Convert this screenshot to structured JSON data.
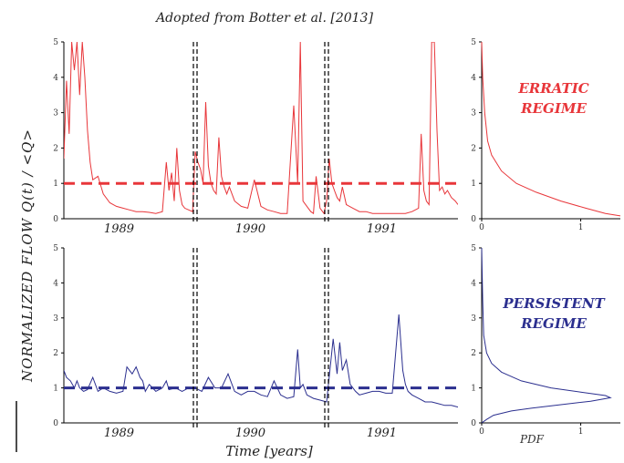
{
  "title": "Adopted from Botter et al. [2013]",
  "ylabel": "NORMALIZED  FLOW   Q(t) / <Q>",
  "xlabel": "Time [years]",
  "colors": {
    "erratic": "#e8363a",
    "persistent": "#2b2f8f",
    "axis": "#000000"
  },
  "chart_data": [
    {
      "type": "line",
      "name": "erratic-time-series",
      "ylim": [
        0,
        5
      ],
      "yticks": [
        "0",
        "1",
        "2",
        "3",
        "4",
        "5"
      ],
      "year_labels": [
        "1989",
        "1990",
        "1991"
      ],
      "xlim": [
        0,
        3
      ],
      "mean_line": 1,
      "separators": [
        1.0,
        2.0
      ],
      "x": [
        0.0,
        0.02,
        0.04,
        0.06,
        0.08,
        0.1,
        0.12,
        0.14,
        0.16,
        0.18,
        0.2,
        0.22,
        0.26,
        0.3,
        0.35,
        0.4,
        0.45,
        0.5,
        0.55,
        0.6,
        0.65,
        0.7,
        0.75,
        0.78,
        0.8,
        0.82,
        0.84,
        0.86,
        0.88,
        0.9,
        0.92,
        0.95,
        0.98,
        1.0,
        1.02,
        1.04,
        1.06,
        1.08,
        1.1,
        1.12,
        1.14,
        1.16,
        1.18,
        1.2,
        1.22,
        1.24,
        1.26,
        1.3,
        1.35,
        1.4,
        1.45,
        1.5,
        1.55,
        1.6,
        1.65,
        1.7,
        1.75,
        1.78,
        1.8,
        1.82,
        1.85,
        1.88,
        1.9,
        1.92,
        1.95,
        1.98,
        2.0,
        2.02,
        2.04,
        2.06,
        2.08,
        2.1,
        2.12,
        2.15,
        2.2,
        2.25,
        2.3,
        2.35,
        2.4,
        2.45,
        2.5,
        2.55,
        2.6,
        2.65,
        2.7,
        2.72,
        2.74,
        2.76,
        2.78,
        2.8,
        2.82,
        2.84,
        2.86,
        2.88,
        2.9,
        2.92,
        2.95,
        2.98,
        3.0
      ],
      "y": [
        1.7,
        3.9,
        2.4,
        5,
        4.2,
        5,
        3.5,
        5,
        4.0,
        2.5,
        1.6,
        1.1,
        1.2,
        0.7,
        0.45,
        0.35,
        0.3,
        0.25,
        0.2,
        0.2,
        0.18,
        0.15,
        0.2,
        1.6,
        0.8,
        1.3,
        0.5,
        2.0,
        0.8,
        0.4,
        0.3,
        0.25,
        0.2,
        1.9,
        1.6,
        1.4,
        1.0,
        3.3,
        1.5,
        1.0,
        0.8,
        0.7,
        2.3,
        1.2,
        0.9,
        0.7,
        0.9,
        0.5,
        0.35,
        0.3,
        1.1,
        0.35,
        0.25,
        0.2,
        0.15,
        0.15,
        3.2,
        1.0,
        5,
        0.5,
        0.35,
        0.2,
        0.15,
        1.2,
        0.3,
        0.15,
        0.5,
        1.7,
        1.0,
        0.8,
        0.6,
        0.5,
        0.9,
        0.4,
        0.3,
        0.2,
        0.2,
        0.15,
        0.15,
        0.15,
        0.15,
        0.15,
        0.15,
        0.2,
        0.3,
        2.4,
        0.8,
        0.5,
        0.4,
        5,
        5,
        2.5,
        0.8,
        0.9,
        0.7,
        0.8,
        0.6,
        0.5,
        0.4
      ]
    },
    {
      "type": "line",
      "name": "erratic-pdf",
      "ylim": [
        0,
        5
      ],
      "xlim": [
        0,
        1.4
      ],
      "yticks": [
        "0",
        "1",
        "2",
        "3",
        "4",
        "5"
      ],
      "xticks": [
        "0",
        "1"
      ],
      "label": "ERRATIC\nREGIME",
      "pdf": [
        [
          0.0,
          5.0
        ],
        [
          0.01,
          4.0
        ],
        [
          0.03,
          3.0
        ],
        [
          0.06,
          2.2
        ],
        [
          0.1,
          1.8
        ],
        [
          0.2,
          1.35
        ],
        [
          0.35,
          1.0
        ],
        [
          0.55,
          0.75
        ],
        [
          0.8,
          0.5
        ],
        [
          1.05,
          0.3
        ],
        [
          1.25,
          0.15
        ],
        [
          1.4,
          0.08
        ]
      ]
    },
    {
      "type": "line",
      "name": "persistent-time-series",
      "ylim": [
        0,
        5
      ],
      "yticks": [
        "0",
        "1",
        "2",
        "3",
        "4",
        "5"
      ],
      "year_labels": [
        "1989",
        "1990",
        "1991"
      ],
      "xlim": [
        0,
        3
      ],
      "mean_line": 1,
      "separators": [
        1.0,
        2.0
      ],
      "x": [
        0.0,
        0.02,
        0.05,
        0.08,
        0.1,
        0.12,
        0.15,
        0.18,
        0.22,
        0.26,
        0.3,
        0.35,
        0.4,
        0.45,
        0.48,
        0.5,
        0.52,
        0.55,
        0.58,
        0.6,
        0.62,
        0.65,
        0.7,
        0.75,
        0.78,
        0.8,
        0.85,
        0.9,
        0.95,
        1.0,
        1.05,
        1.1,
        1.15,
        1.2,
        1.25,
        1.3,
        1.35,
        1.4,
        1.45,
        1.5,
        1.55,
        1.6,
        1.65,
        1.7,
        1.75,
        1.78,
        1.8,
        1.82,
        1.85,
        1.9,
        1.95,
        2.0,
        2.05,
        2.08,
        2.1,
        2.12,
        2.15,
        2.18,
        2.2,
        2.22,
        2.25,
        2.3,
        2.35,
        2.4,
        2.45,
        2.5,
        2.55,
        2.58,
        2.6,
        2.62,
        2.65,
        2.7,
        2.75,
        2.8,
        2.85,
        2.9,
        2.95,
        3.0
      ],
      "y": [
        1.5,
        1.3,
        1.2,
        1.0,
        1.2,
        1.0,
        0.9,
        0.95,
        1.3,
        0.9,
        1.0,
        0.9,
        0.85,
        0.9,
        1.6,
        1.5,
        1.4,
        1.6,
        1.3,
        1.2,
        0.9,
        1.1,
        0.9,
        1.0,
        1.2,
        0.95,
        1.0,
        0.9,
        1.0,
        1.0,
        0.9,
        1.3,
        1.0,
        1.0,
        1.4,
        0.9,
        0.8,
        0.9,
        0.9,
        0.8,
        0.75,
        1.2,
        0.8,
        0.7,
        0.75,
        2.1,
        1.0,
        1.1,
        0.8,
        0.7,
        0.65,
        0.6,
        2.4,
        1.4,
        2.3,
        1.5,
        1.8,
        1.1,
        1.0,
        0.9,
        0.8,
        0.85,
        0.9,
        0.9,
        0.85,
        0.85,
        3.1,
        1.5,
        1.1,
        0.9,
        0.8,
        0.7,
        0.6,
        0.6,
        0.55,
        0.5,
        0.5,
        0.45
      ]
    },
    {
      "type": "line",
      "name": "persistent-pdf",
      "ylim": [
        0,
        5
      ],
      "xlim": [
        0,
        1.4
      ],
      "yticks": [
        "0",
        "1",
        "2",
        "3",
        "4",
        "5"
      ],
      "xticks": [
        "0",
        "1"
      ],
      "xlabel": "PDF",
      "label": "PERSISTENT\nREGIME",
      "pdf": [
        [
          0.0,
          5.0
        ],
        [
          0.01,
          3.5
        ],
        [
          0.02,
          2.5
        ],
        [
          0.05,
          2.0
        ],
        [
          0.1,
          1.7
        ],
        [
          0.2,
          1.45
        ],
        [
          0.4,
          1.2
        ],
        [
          0.7,
          1.0
        ],
        [
          1.0,
          0.88
        ],
        [
          1.25,
          0.78
        ],
        [
          1.3,
          0.72
        ],
        [
          1.1,
          0.62
        ],
        [
          0.8,
          0.52
        ],
        [
          0.5,
          0.42
        ],
        [
          0.3,
          0.34
        ],
        [
          0.12,
          0.22
        ],
        [
          0.05,
          0.1
        ],
        [
          0.0,
          0.0
        ]
      ]
    }
  ]
}
